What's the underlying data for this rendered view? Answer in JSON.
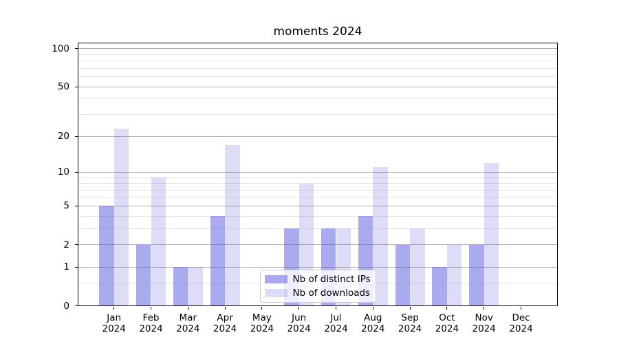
{
  "figure": {
    "title": "moments 2024",
    "background": "#ffffff"
  },
  "chart_data": {
    "type": "bar",
    "title": "moments 2024",
    "categories": [
      "Jan 2024",
      "Feb 2024",
      "Mar 2024",
      "Apr 2024",
      "May 2024",
      "Jun 2024",
      "Jul 2024",
      "Aug 2024",
      "Sep 2024",
      "Oct 2024",
      "Nov 2024",
      "Dec 2024"
    ],
    "series": [
      {
        "name": "Nb of distinct IPs",
        "values": [
          5,
          2,
          1,
          4,
          0,
          3,
          3,
          4,
          2,
          1,
          2,
          0
        ],
        "fill": "rgba(85,85,221,0.5)",
        "color_hex": "#aaaaee"
      },
      {
        "name": "Nb of downloads",
        "values": [
          23,
          9,
          1,
          17,
          0,
          8,
          3,
          11,
          3,
          2,
          12,
          0
        ],
        "fill": "rgba(85,85,221,0.2)",
        "color_hex": "#ddddf8"
      }
    ],
    "xlabel": "",
    "ylabel": "",
    "yscale": "log1p",
    "ylim": [
      0,
      111
    ],
    "y_major_ticks": [
      0,
      1,
      2,
      5,
      10,
      20,
      50,
      100
    ],
    "y_minor_ticks": [
      0.5,
      3,
      4,
      6,
      7,
      8,
      9,
      30,
      40,
      60,
      70,
      80,
      90
    ],
    "grid": {
      "on": true,
      "which": "both",
      "major_color": "#b0b0b0",
      "minor_color": "#e4e4e4"
    },
    "legend": {
      "position": "lower center inside",
      "frame_color": "#cccccc",
      "background": "rgba(255,255,255,0.8)"
    }
  }
}
